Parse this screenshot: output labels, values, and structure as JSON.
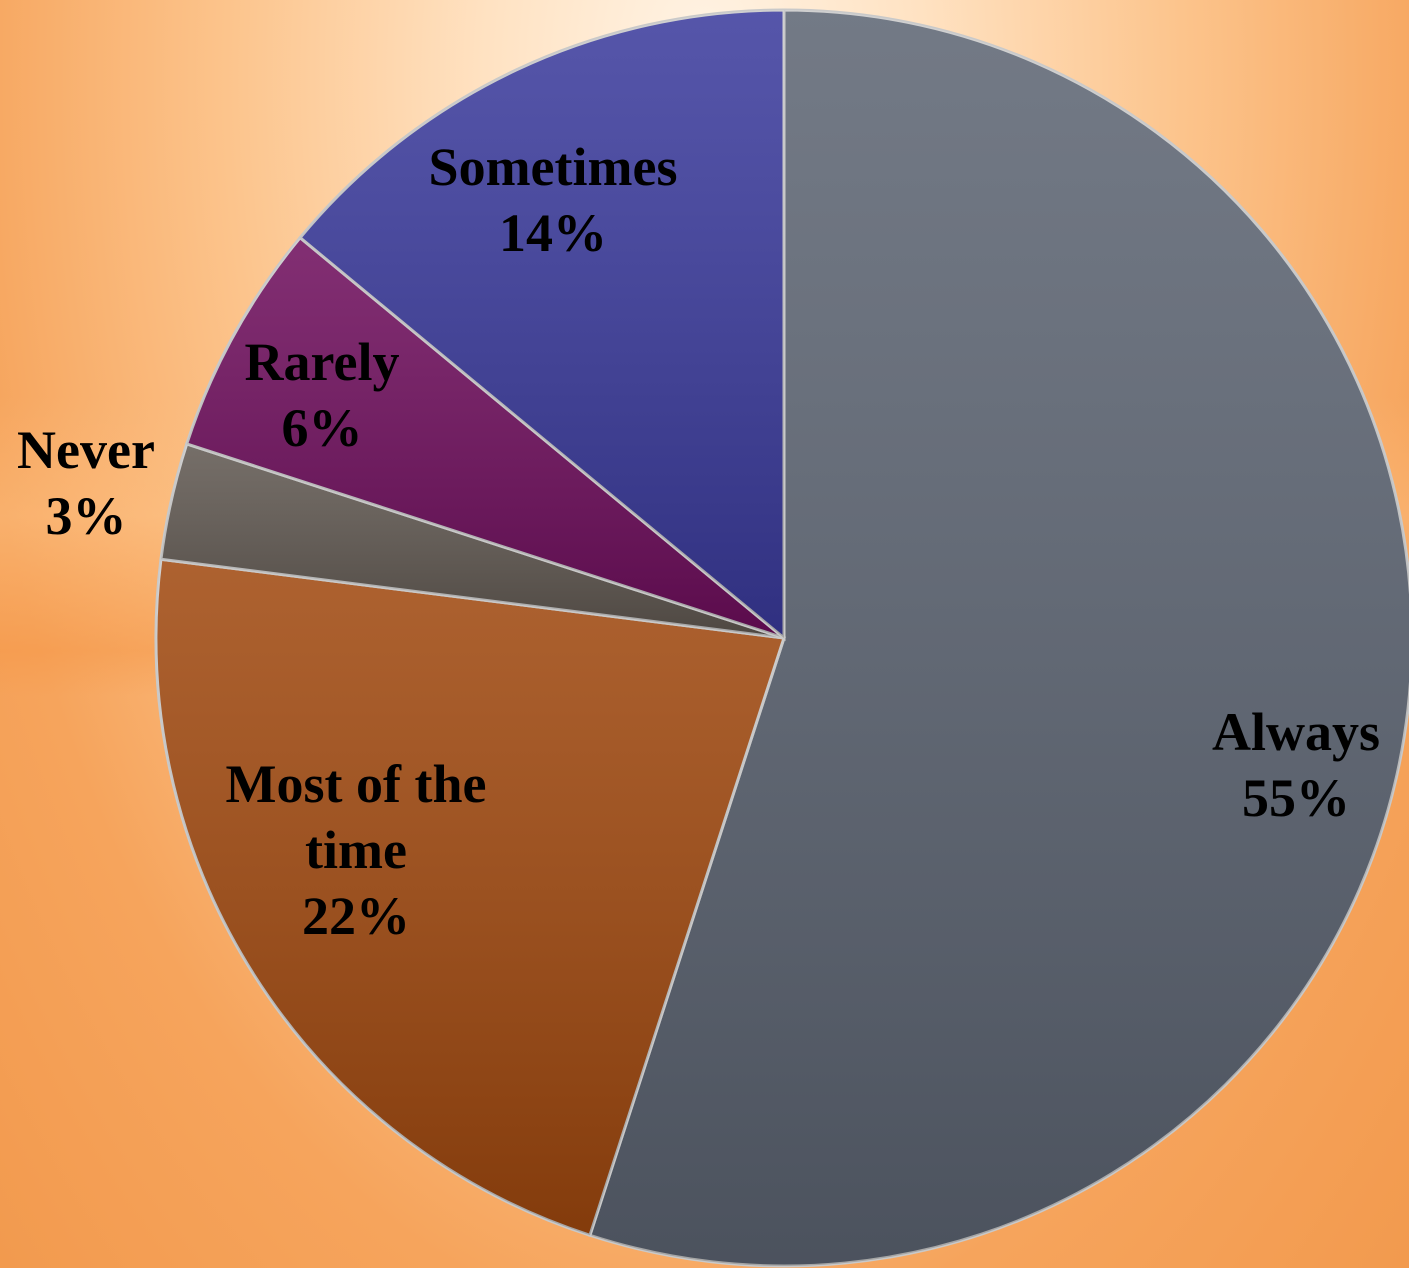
{
  "chart_data": {
    "type": "pie",
    "title": "",
    "slices": [
      {
        "label": "Always",
        "value": 55,
        "display": "55%",
        "color": "#5c6472"
      },
      {
        "label": "Most of the time",
        "value": 22,
        "display": "22%",
        "color": "#a0480e"
      },
      {
        "label": "Never",
        "value": 3,
        "display": "3%",
        "color": "#5f5750"
      },
      {
        "label": "Rarely",
        "value": 6,
        "display": "6%",
        "color": "#6e0d5c"
      },
      {
        "label": "Sometimes",
        "value": 14,
        "display": "14%",
        "color": "#3a3a9c"
      }
    ],
    "start_direction": "12 o'clock",
    "direction": "clockwise",
    "legend": "none",
    "data_labels": "category name and percent"
  }
}
